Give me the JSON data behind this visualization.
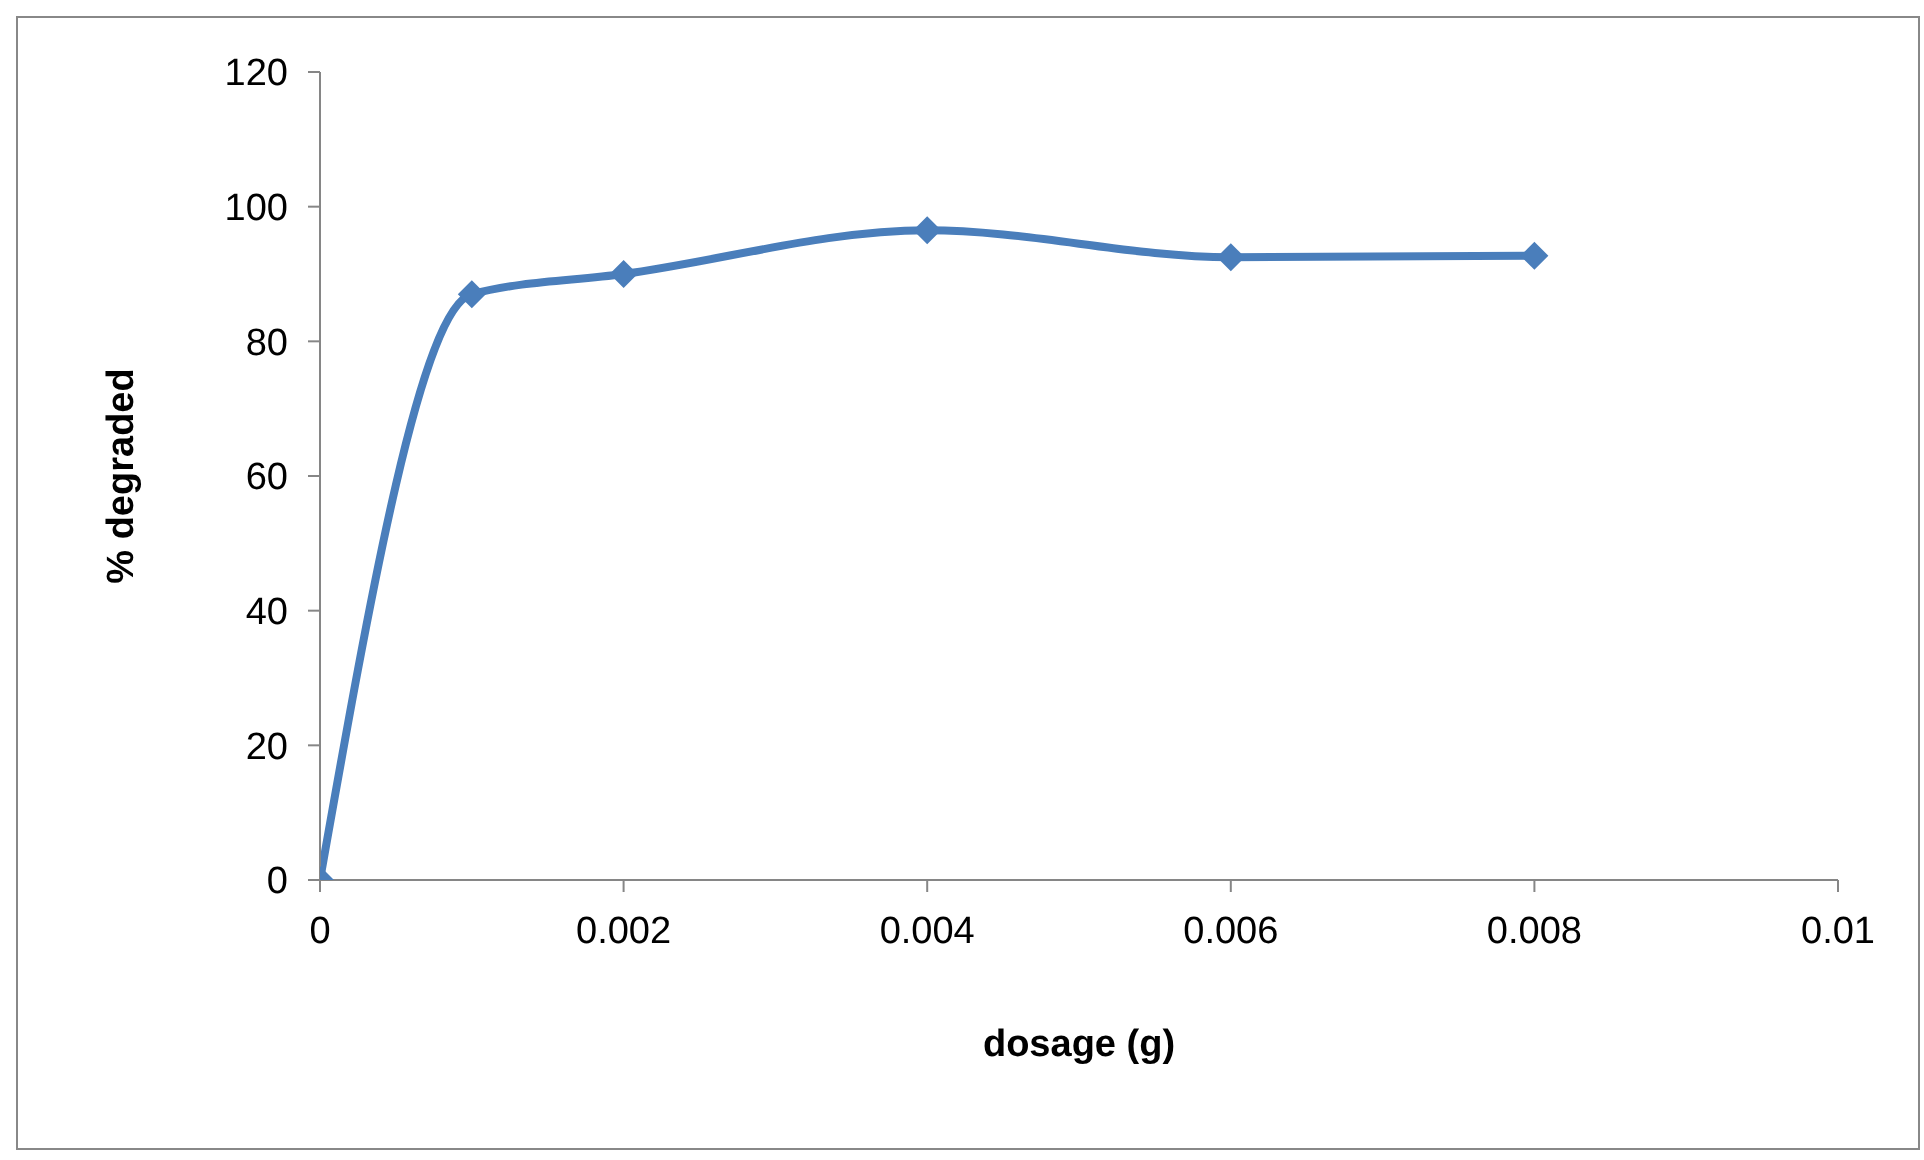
{
  "chart_data": {
    "type": "line",
    "xlabel": "dosage (g)",
    "ylabel": "% degraded",
    "x": [
      0,
      0.001,
      0.002,
      0.004,
      0.006,
      0.008
    ],
    "series": [
      {
        "color": "#4a7ebb",
        "values": [
          0,
          87,
          90,
          96.5,
          92.5,
          92.7
        ]
      }
    ],
    "xlim": [
      0,
      0.01
    ],
    "xticks": [
      0,
      0.002,
      0.004,
      0.006,
      0.008,
      0.01
    ],
    "ylim": [
      0,
      120
    ],
    "yticks": [
      0,
      20,
      40,
      60,
      80,
      100,
      120
    ],
    "grid": false,
    "legend": false,
    "marker": "diamond",
    "line_style": "solid"
  }
}
